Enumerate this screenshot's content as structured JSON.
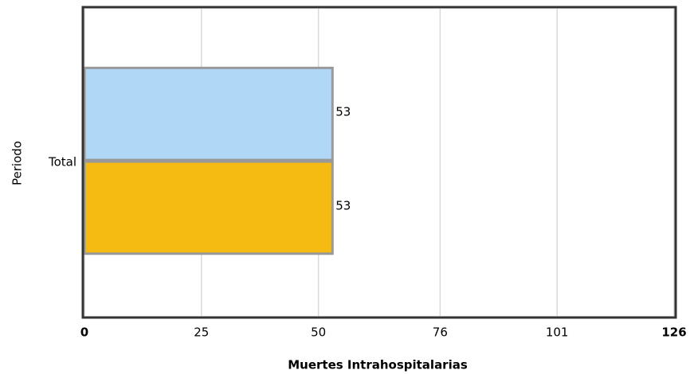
{
  "chart_data": {
    "type": "bar",
    "orientation": "horizontal",
    "x_label": "Muertes Intrahospitalarias",
    "y_label": "Periodo",
    "categories": [
      "Total"
    ],
    "series": [
      {
        "color": "#b1d7f7",
        "values": [
          53
        ]
      },
      {
        "color": "#f5bb12",
        "values": [
          53
        ]
      }
    ],
    "xlim": [
      0,
      126
    ],
    "xticks": [
      0,
      25,
      50,
      76,
      101,
      126
    ],
    "grid": true
  }
}
